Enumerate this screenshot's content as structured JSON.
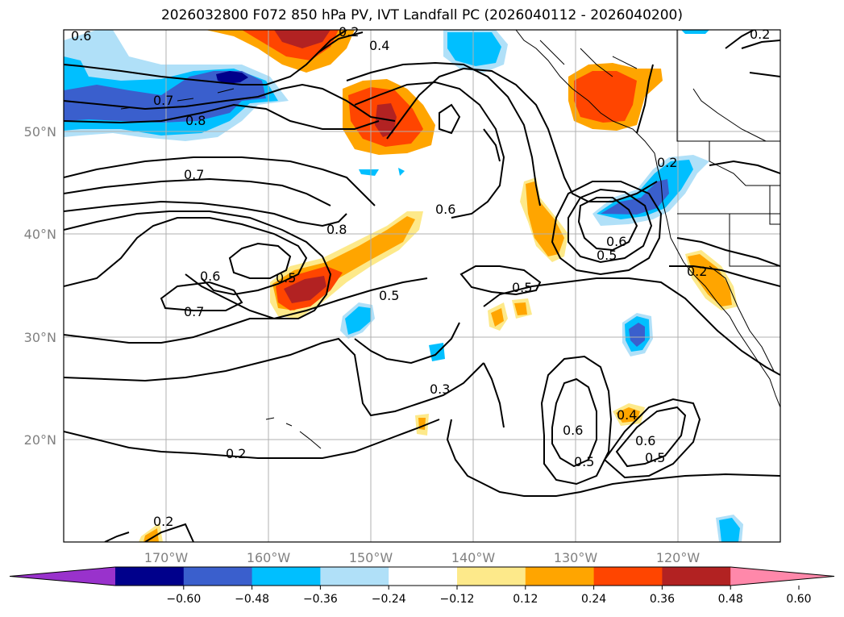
{
  "title": "2026032800 F072 850 hPa PV, IVT Landfall PC (2026040112 - 2026040200)",
  "lon_labels": [
    "170°W",
    "160°W",
    "150°W",
    "140°W",
    "130°W",
    "120°W"
  ],
  "lat_labels": [
    "50°N",
    "40°N",
    "30°N",
    "20°N"
  ],
  "contour_labels": [
    "0.6",
    "0.4",
    "0.2",
    "0.7",
    "0.8",
    "0.7",
    "0.8",
    "0.6",
    "0.6",
    "0.7",
    "0.5",
    "0.5",
    "0.5",
    "0.3",
    "0.2",
    "0.2",
    "0.6",
    "0.5",
    "0.4",
    "0.6",
    "0.5",
    "0.6",
    "0.5",
    "0.2",
    "0.2",
    "0.2"
  ],
  "colorbar": {
    "colors": [
      "#9932cc",
      "#00008b",
      "#3a5fcd",
      "#00bfff",
      "#b0e0f8",
      "#ffffff",
      "#fde98a",
      "#ffa500",
      "#ff4500",
      "#b22222",
      "#ff88aa"
    ],
    "ticks": [
      "−0.60",
      "−0.48",
      "−0.36",
      "−0.24",
      "−0.12",
      "0.12",
      "0.24",
      "0.36",
      "0.48",
      "0.60"
    ]
  }
}
